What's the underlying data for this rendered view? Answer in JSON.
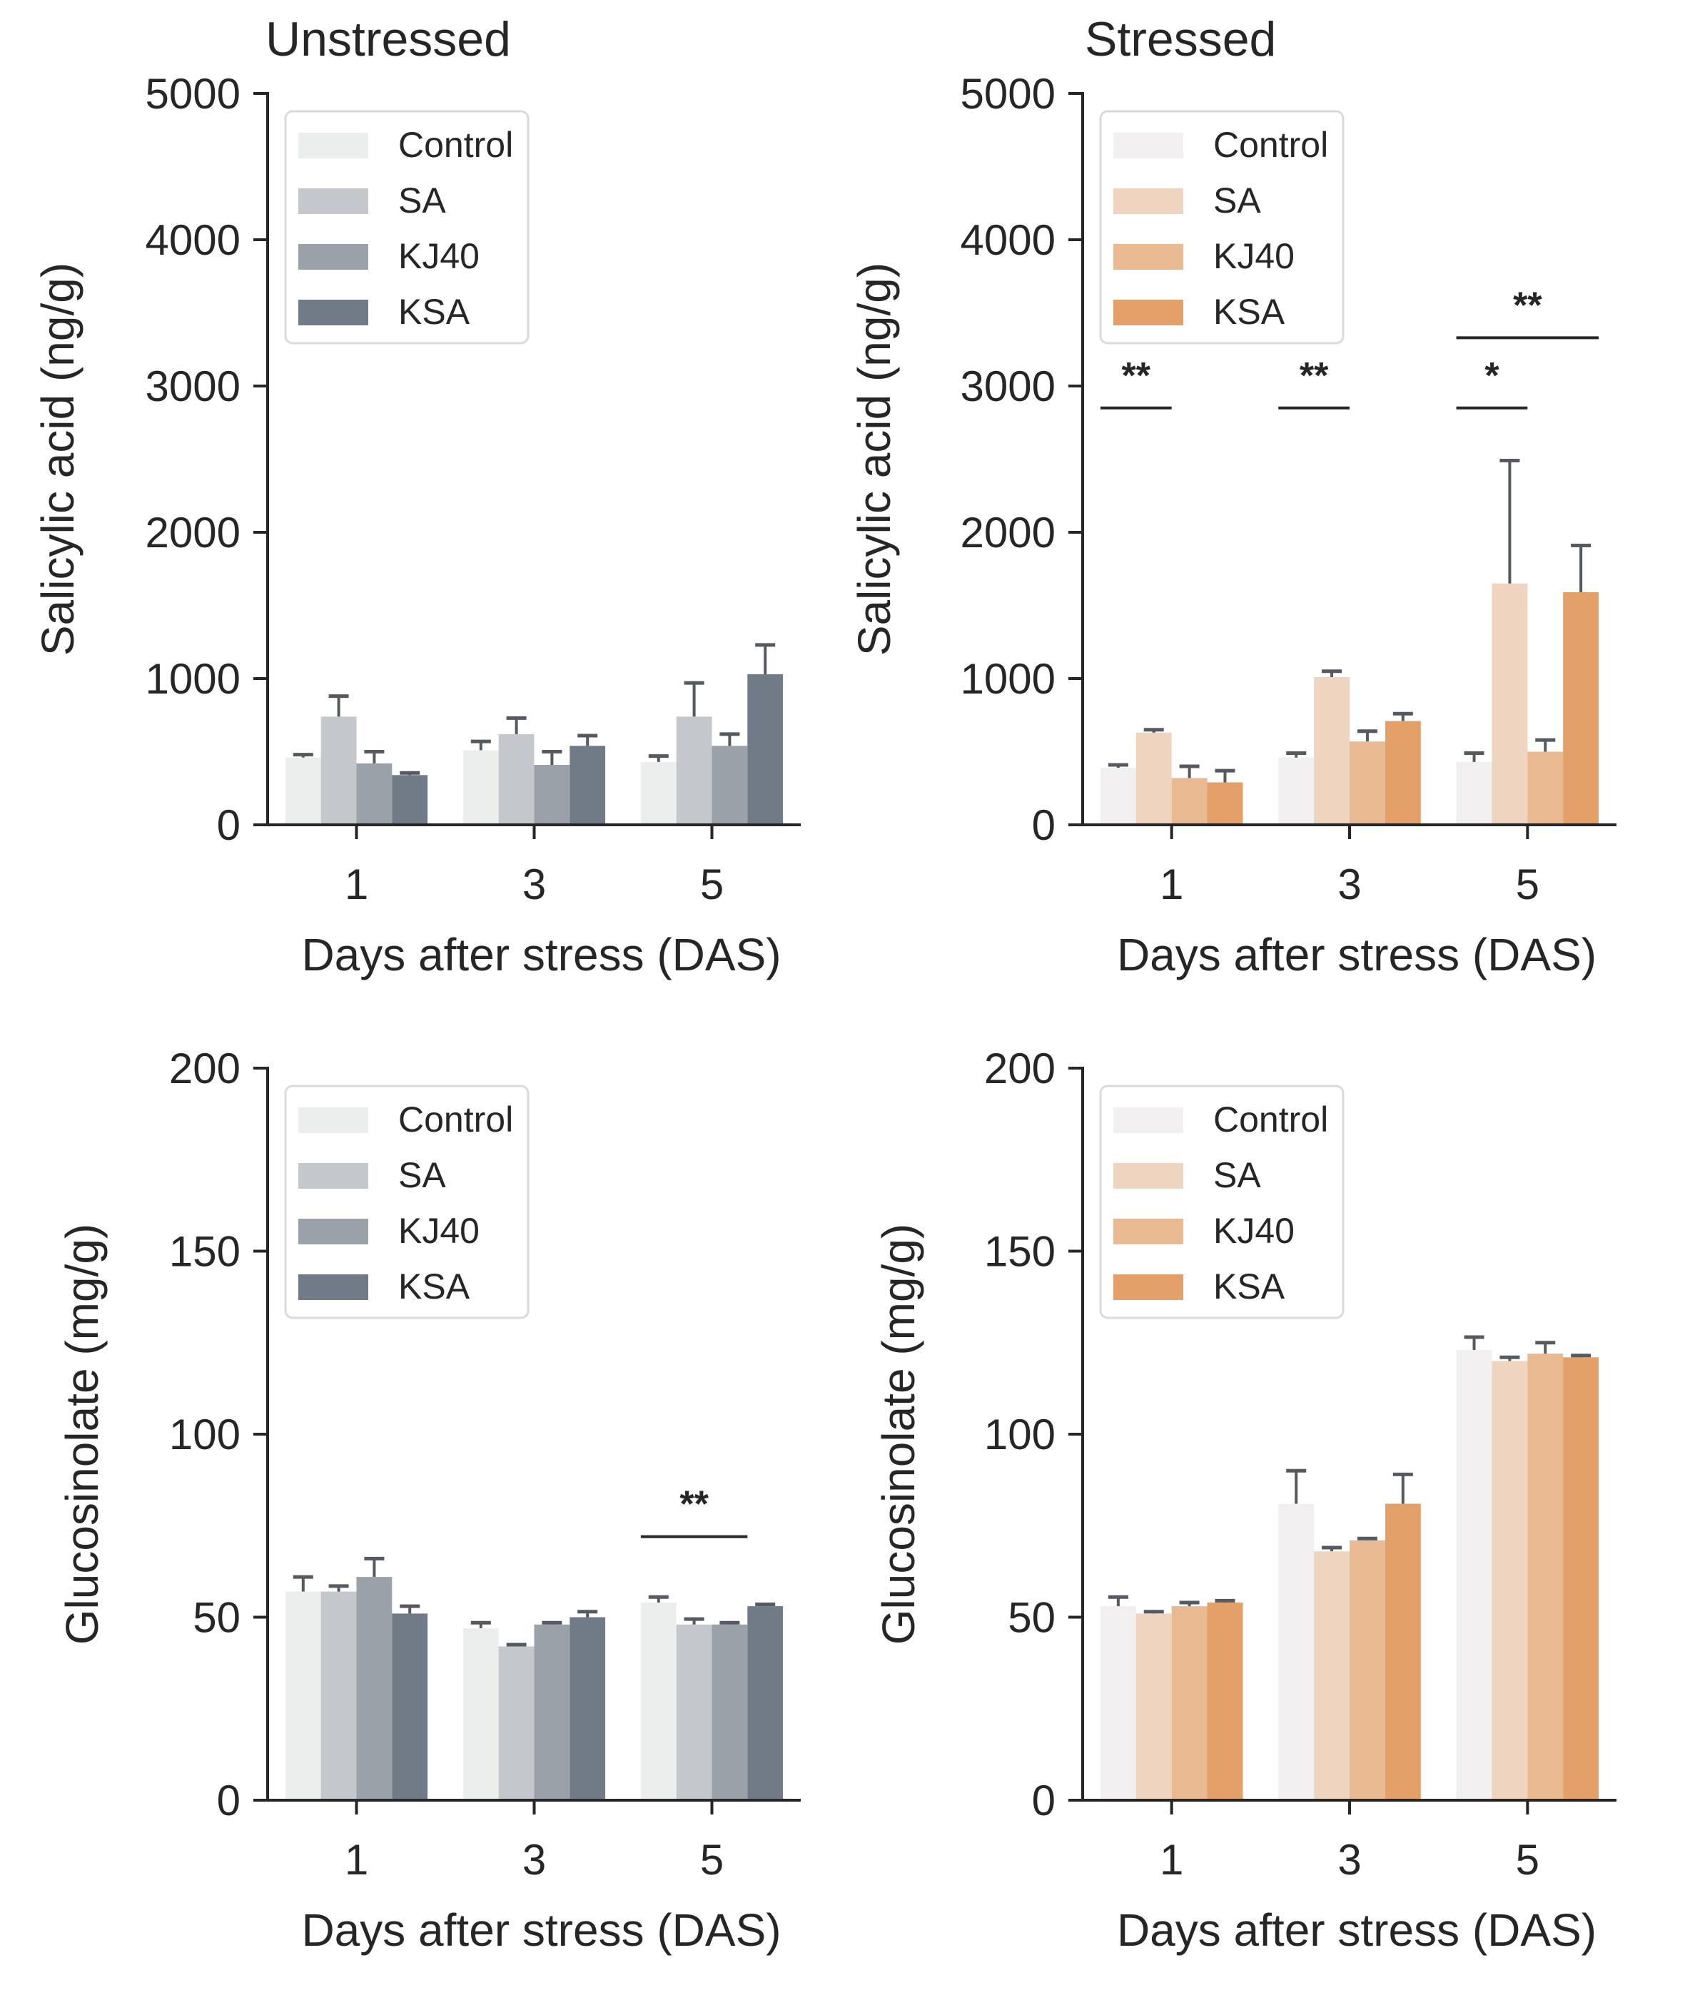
{
  "chart_data": [
    {
      "type": "bar",
      "title": "Unstressed",
      "xlabel": "Days after stress (DAS)",
      "ylabel": "Salicylic acid (ng/g)",
      "categories": [
        "1",
        "3",
        "5"
      ],
      "ylim": [
        0,
        5000
      ],
      "yticks": [
        "0",
        "1000",
        "2000",
        "3000",
        "4000",
        "5000"
      ],
      "legend": "top-left",
      "series": [
        {
          "name": "Control",
          "color": "#eceeed",
          "values": [
            460,
            510,
            430
          ],
          "errors": [
            20,
            60,
            40
          ]
        },
        {
          "name": "SA",
          "color": "#c4c7cb",
          "values": [
            740,
            620,
            740
          ],
          "errors": [
            140,
            110,
            230
          ]
        },
        {
          "name": "KJ40",
          "color": "#9aa1a9",
          "values": [
            420,
            410,
            540
          ],
          "errors": [
            80,
            90,
            80
          ]
        },
        {
          "name": "KSA",
          "color": "#717b87",
          "values": [
            340,
            540,
            1030
          ],
          "errors": [
            15,
            70,
            200
          ]
        }
      ],
      "annotations": []
    },
    {
      "type": "bar",
      "title": "Stressed",
      "xlabel": "Days after stress (DAS)",
      "ylabel": "Salicylic acid (ng/g)",
      "categories": [
        "1",
        "3",
        "5"
      ],
      "ylim": [
        0,
        5000
      ],
      "yticks": [
        "0",
        "1000",
        "2000",
        "3000",
        "4000",
        "5000"
      ],
      "legend": "top-left",
      "series": [
        {
          "name": "Control",
          "color": "#f1eff0",
          "values": [
            390,
            460,
            430
          ],
          "errors": [
            20,
            30,
            60
          ]
        },
        {
          "name": "SA",
          "color": "#efd5bf",
          "values": [
            630,
            1010,
            1650
          ],
          "errors": [
            20,
            40,
            840
          ]
        },
        {
          "name": "KJ40",
          "color": "#e9b992",
          "values": [
            320,
            570,
            500
          ],
          "errors": [
            80,
            70,
            80
          ]
        },
        {
          "name": "KSA",
          "color": "#e3a068",
          "values": [
            290,
            710,
            1590
          ],
          "errors": [
            80,
            50,
            320
          ]
        }
      ],
      "annotations": [
        {
          "text": "**",
          "category": "1",
          "from_series": 0,
          "to_series": 1,
          "y": 2850
        },
        {
          "text": "**",
          "category": "3",
          "from_series": 0,
          "to_series": 1,
          "y": 2850
        },
        {
          "text": "*",
          "category": "5",
          "from_series": 0,
          "to_series": 1,
          "y": 2850
        },
        {
          "text": "**",
          "category": "5",
          "from_series": 0,
          "to_series": 3,
          "y": 3330
        }
      ]
    },
    {
      "type": "bar",
      "title": "",
      "xlabel": "Days after stress (DAS)",
      "ylabel": "Glucosinolate (mg/g)",
      "categories": [
        "1",
        "3",
        "5"
      ],
      "ylim": [
        0,
        200
      ],
      "yticks": [
        "0",
        "50",
        "100",
        "150",
        "200"
      ],
      "legend": "top-left",
      "series": [
        {
          "name": "Control",
          "color": "#eceeed",
          "values": [
            57,
            47,
            54
          ],
          "errors": [
            4,
            1.5,
            1.5
          ]
        },
        {
          "name": "SA",
          "color": "#c4c7cb",
          "values": [
            57,
            42,
            48
          ],
          "errors": [
            1.5,
            0.5,
            1.5
          ]
        },
        {
          "name": "KJ40",
          "color": "#9aa1a9",
          "values": [
            61,
            48,
            48
          ],
          "errors": [
            5,
            0.5,
            0.5
          ]
        },
        {
          "name": "KSA",
          "color": "#717b87",
          "values": [
            51,
            50,
            53
          ],
          "errors": [
            2,
            1.5,
            0.5
          ]
        }
      ],
      "annotations": [
        {
          "text": "**",
          "category": "5",
          "from_series": 0,
          "to_series": 2,
          "y": 72
        }
      ]
    },
    {
      "type": "bar",
      "title": "",
      "xlabel": "Days after stress (DAS)",
      "ylabel": "Glucosinolate (mg/g)",
      "categories": [
        "1",
        "3",
        "5"
      ],
      "ylim": [
        0,
        200
      ],
      "yticks": [
        "0",
        "50",
        "100",
        "150",
        "200"
      ],
      "legend": "top-left",
      "series": [
        {
          "name": "Control",
          "color": "#f1eff0",
          "values": [
            53,
            81,
            123
          ],
          "errors": [
            2.5,
            9,
            3.5
          ]
        },
        {
          "name": "SA",
          "color": "#efd5bf",
          "values": [
            51,
            68,
            120
          ],
          "errors": [
            0.5,
            1,
            1
          ]
        },
        {
          "name": "KJ40",
          "color": "#e9b992",
          "values": [
            53,
            71,
            122
          ],
          "errors": [
            1,
            0.5,
            3
          ]
        },
        {
          "name": "KSA",
          "color": "#e3a068",
          "values": [
            54,
            81,
            121
          ],
          "errors": [
            0.5,
            8,
            0.5
          ]
        }
      ],
      "annotations": []
    }
  ]
}
